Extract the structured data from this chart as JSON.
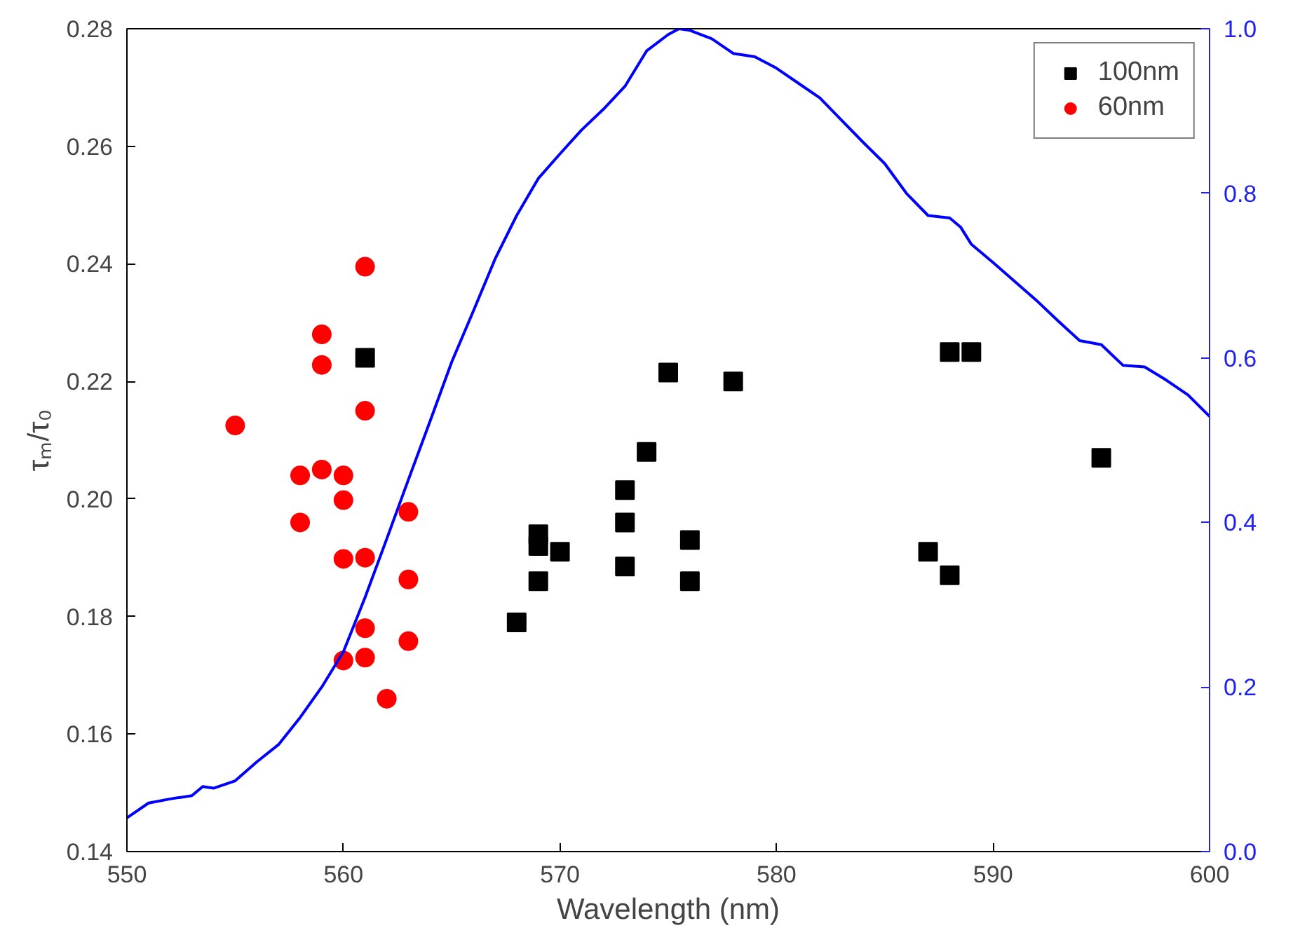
{
  "chart_data": {
    "type": "scatter",
    "xlabel": "Wavelength (nm)",
    "ylabel": "τₘ/τ₀",
    "xlim": [
      550,
      600
    ],
    "xticks": [
      550,
      560,
      570,
      580,
      590,
      600
    ],
    "ylim": [
      0.14,
      0.28
    ],
    "yticks": [
      0.14,
      0.16,
      0.18,
      {
        "value": 0.2,
        "label": "0.20"
      },
      0.22,
      0.24,
      0.26,
      0.28
    ],
    "y2lim": [
      0,
      1
    ],
    "y2ticks": [
      {
        "value": 0,
        "label": "0.0"
      },
      0.2,
      0.4,
      0.6,
      0.8,
      {
        "value": 1,
        "label": "1.0"
      }
    ],
    "grid": false,
    "legend": "top right",
    "series": [
      {
        "name": "100nm",
        "color": "#000000",
        "marker": "square",
        "x": [
          561,
          568,
          569,
          569,
          569,
          570,
          573,
          573,
          573,
          574,
          575,
          576,
          576,
          578,
          587,
          588,
          588,
          589,
          595
        ],
        "values": [
          0.224,
          0.179,
          0.194,
          0.192,
          0.186,
          0.191,
          0.2015,
          0.196,
          0.1885,
          0.208,
          0.2215,
          0.193,
          0.186,
          0.22,
          0.191,
          0.187,
          0.225,
          0.225,
          0.207
        ]
      },
      {
        "name": "60nm",
        "color": "#ff0000",
        "marker": "circle",
        "x": [
          555,
          558,
          558,
          559,
          559,
          559,
          560,
          560,
          560,
          560,
          561,
          561,
          561,
          561,
          561,
          562,
          563,
          563,
          563
        ],
        "values": [
          0.2125,
          0.204,
          0.196,
          0.228,
          0.2228,
          0.205,
          0.204,
          0.1998,
          0.1898,
          0.1725,
          0.2395,
          0.215,
          0.19,
          0.178,
          0.173,
          0.166,
          0.1978,
          0.1863,
          0.1758
        ]
      },
      {
        "type": "line",
        "axis": "y2",
        "color": "#0000ff",
        "x": [
          550,
          551,
          552,
          553,
          553.5,
          554,
          555,
          556,
          557,
          558,
          559,
          560,
          561,
          562,
          563,
          564,
          565,
          566,
          567,
          568,
          569,
          570,
          571,
          572,
          573,
          574,
          575,
          575.5,
          576,
          577,
          578,
          579,
          580,
          581,
          582,
          583,
          584,
          585,
          586,
          587,
          588,
          588.5,
          589,
          590,
          591,
          592,
          593,
          594,
          595,
          596,
          597,
          598,
          599,
          600
        ],
        "values": [
          0.041,
          0.059,
          0.064,
          0.068,
          0.079,
          0.077,
          0.086,
          0.109,
          0.13,
          0.163,
          0.2,
          0.243,
          0.309,
          0.38,
          0.452,
          0.523,
          0.595,
          0.657,
          0.72,
          0.773,
          0.818,
          0.848,
          0.877,
          0.902,
          0.93,
          0.973,
          0.993,
          1.0,
          0.998,
          0.988,
          0.97,
          0.966,
          0.952,
          0.934,
          0.916,
          0.889,
          0.862,
          0.836,
          0.8,
          0.773,
          0.77,
          0.759,
          0.738,
          0.716,
          0.693,
          0.67,
          0.645,
          0.621,
          0.616,
          0.591,
          0.589,
          0.573,
          0.555,
          0.529
        ]
      }
    ]
  }
}
